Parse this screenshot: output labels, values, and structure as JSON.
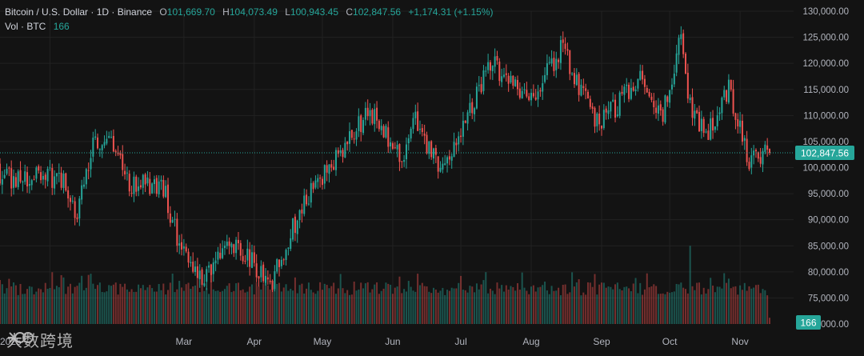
{
  "header": {
    "symbol": "Bitcoin / U.S. Dollar · 1D · Binance",
    "o_label": "O",
    "o_value": "101,669.70",
    "h_label": "H",
    "h_value": "104,073.49",
    "l_label": "L",
    "l_value": "100,943.45",
    "c_label": "C",
    "c_value": "102,847.56",
    "change": "+1,174.31 (+1.15%)",
    "vol_label": "Vol · BTC",
    "vol_value": "166"
  },
  "watermark": {
    "text": "大数跨境"
  },
  "colors": {
    "up": "#26a69a",
    "down": "#ef5350",
    "background": "#131313",
    "grid": "#222222"
  },
  "chart_data": {
    "type": "candlestick",
    "y_ticks": [
      "130,000.00",
      "125,000.00",
      "120,000.00",
      "115,000.00",
      "110,000.00",
      "105,000.00",
      "100,000.00",
      "95,000.00",
      "90,000.00",
      "85,000.00",
      "80,000.00",
      "75,000.00"
    ],
    "y_tick_values": [
      130000,
      125000,
      120000,
      115000,
      110000,
      105000,
      100000,
      95000,
      90000,
      85000,
      80000,
      75000
    ],
    "y_bottom_label": "70,000.00",
    "ylim": [
      70000,
      130000
    ],
    "x_ticks": [
      "2025",
      "Mar",
      "Apr",
      "May",
      "Jun",
      "Jul",
      "Aug",
      "Sep",
      "Oct",
      "Nov"
    ],
    "last_price_label": "102,847.56",
    "last_price": 102847.56,
    "last_volume_label": "166",
    "anchors": [
      [
        "2025-01-06",
        98000
      ],
      [
        "2025-01-13",
        91000
      ],
      [
        "2025-01-20",
        105000
      ],
      [
        "2025-01-30",
        104000
      ],
      [
        "2025-02-05",
        97000
      ],
      [
        "2025-02-20",
        96000
      ],
      [
        "2025-02-27",
        85000
      ],
      [
        "2025-03-10",
        78000
      ],
      [
        "2025-03-20",
        86000
      ],
      [
        "2025-03-31",
        82000
      ],
      [
        "2025-04-08",
        77000
      ],
      [
        "2025-04-22",
        93000
      ],
      [
        "2025-05-09",
        103000
      ],
      [
        "2025-05-22",
        111000
      ],
      [
        "2025-06-05",
        101000
      ],
      [
        "2025-06-10",
        110000
      ],
      [
        "2025-06-22",
        99000
      ],
      [
        "2025-07-03",
        109000
      ],
      [
        "2025-07-14",
        120000
      ],
      [
        "2025-08-02",
        113000
      ],
      [
        "2025-08-14",
        123000
      ],
      [
        "2025-08-31",
        108000
      ],
      [
        "2025-09-18",
        117000
      ],
      [
        "2025-09-27",
        109000
      ],
      [
        "2025-10-06",
        125000
      ],
      [
        "2025-10-10",
        112000
      ],
      [
        "2025-10-17",
        106000
      ],
      [
        "2025-10-27",
        115000
      ],
      [
        "2025-11-05",
        101000
      ],
      [
        "2025-11-12",
        103000
      ],
      [
        "2025-11-14",
        102848
      ]
    ],
    "volume_spikes": [
      [
        "2025-10-10",
        85000
      ]
    ]
  }
}
